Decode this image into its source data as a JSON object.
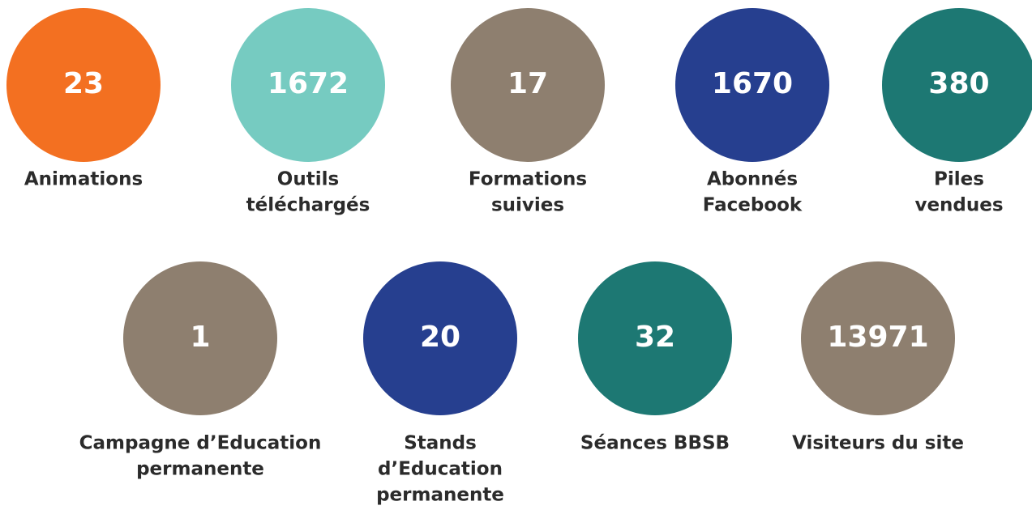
{
  "items": [
    {
      "value": "23",
      "label": [
        "Animations"
      ],
      "color": "#f37021"
    },
    {
      "value": "1672",
      "label": [
        "Outils",
        "téléchargés"
      ],
      "color": "#76cbc1"
    },
    {
      "value": "17",
      "label": [
        "Formations",
        "suivies"
      ],
      "color": "#8e7f6f"
    },
    {
      "value": "1670",
      "label": [
        "Abonnés",
        "Facebook"
      ],
      "color": "#263f8f"
    },
    {
      "value": "380",
      "label": [
        "Piles",
        "vendues"
      ],
      "color": "#1d7873"
    },
    {
      "value": "1",
      "label": [
        "Campagne d’Education",
        "permanente"
      ],
      "color": "#8e7f6f"
    },
    {
      "value": "20",
      "label": [
        "Stands",
        "d’Education",
        "permanente"
      ],
      "color": "#263f8f"
    },
    {
      "value": "32",
      "label": [
        "Séances BBSB"
      ],
      "color": "#1d7873"
    },
    {
      "value": "13971",
      "label": [
        "Visiteurs du site"
      ],
      "color": "#8e7f6f"
    }
  ]
}
